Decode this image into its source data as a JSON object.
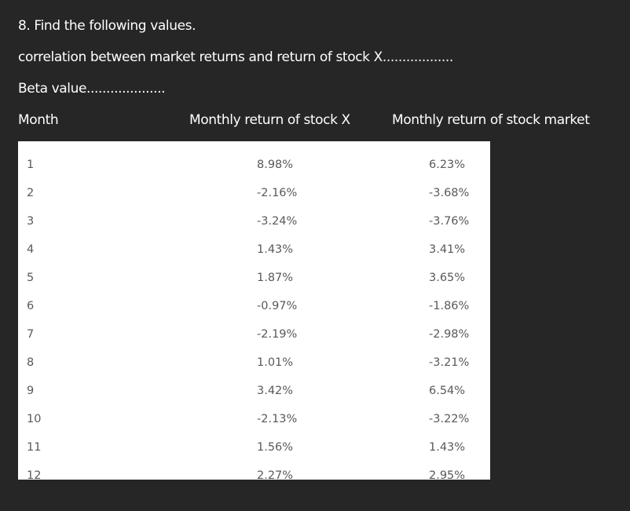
{
  "question": {
    "title": "8. Find the following values.",
    "correlation_line": "correlation between market returns and return of stock X..................",
    "beta_line": "Beta value...................."
  },
  "table": {
    "headers": {
      "month": "Month",
      "stock_x": "Monthly return of stock X",
      "market": "Monthly return of stock market"
    },
    "rows": [
      {
        "month": "1",
        "stock_x": "8.98%",
        "market": "6.23%"
      },
      {
        "month": "2",
        "stock_x": "-2.16%",
        "market": "-3.68%"
      },
      {
        "month": "3",
        "stock_x": "-3.24%",
        "market": "-3.76%"
      },
      {
        "month": "4",
        "stock_x": "1.43%",
        "market": "3.41%"
      },
      {
        "month": "5",
        "stock_x": "1.87%",
        "market": "3.65%"
      },
      {
        "month": "6",
        "stock_x": "-0.97%",
        "market": "-1.86%"
      },
      {
        "month": "7",
        "stock_x": "-2.19%",
        "market": "-2.98%"
      },
      {
        "month": "8",
        "stock_x": "1.01%",
        "market": "-3.21%"
      },
      {
        "month": "9",
        "stock_x": "3.42%",
        "market": "6.54%"
      },
      {
        "month": "10",
        "stock_x": "-2.13%",
        "market": "-3.22%"
      },
      {
        "month": "11",
        "stock_x": "1.56%",
        "market": "1.43%"
      },
      {
        "month": "12",
        "stock_x": "2.27%",
        "market": "2.95%"
      }
    ]
  }
}
